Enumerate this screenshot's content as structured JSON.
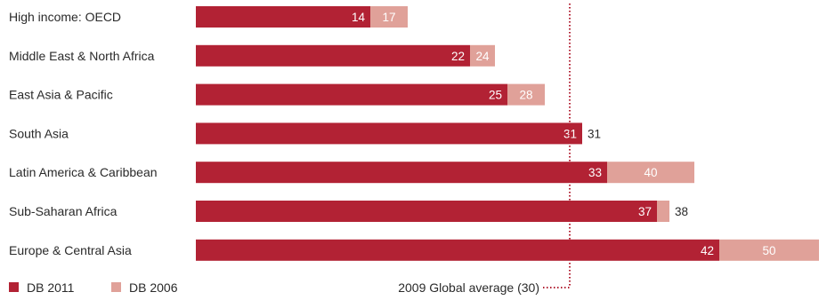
{
  "chart_data": {
    "type": "bar",
    "orientation": "horizontal",
    "categories": [
      "High income: OECD",
      "Middle East & North Africa",
      "East Asia & Pacific",
      "South Asia",
      "Latin America & Caribbean",
      "Sub-Saharan Africa",
      "Europe & Central Asia"
    ],
    "series": [
      {
        "name": "DB 2011",
        "values": [
          14,
          22,
          25,
          31,
          33,
          37,
          42
        ],
        "color": "#b22234"
      },
      {
        "name": "DB 2006",
        "values": [
          17,
          24,
          28,
          31,
          40,
          38,
          50
        ],
        "color": "#e0a199"
      }
    ],
    "reference_line": {
      "value": 30,
      "label": "2009 Global average (30)",
      "style": "dotted",
      "color": "#b22234"
    },
    "xlim": [
      0,
      50
    ],
    "grid": false,
    "legend_position": "bottom-left"
  }
}
